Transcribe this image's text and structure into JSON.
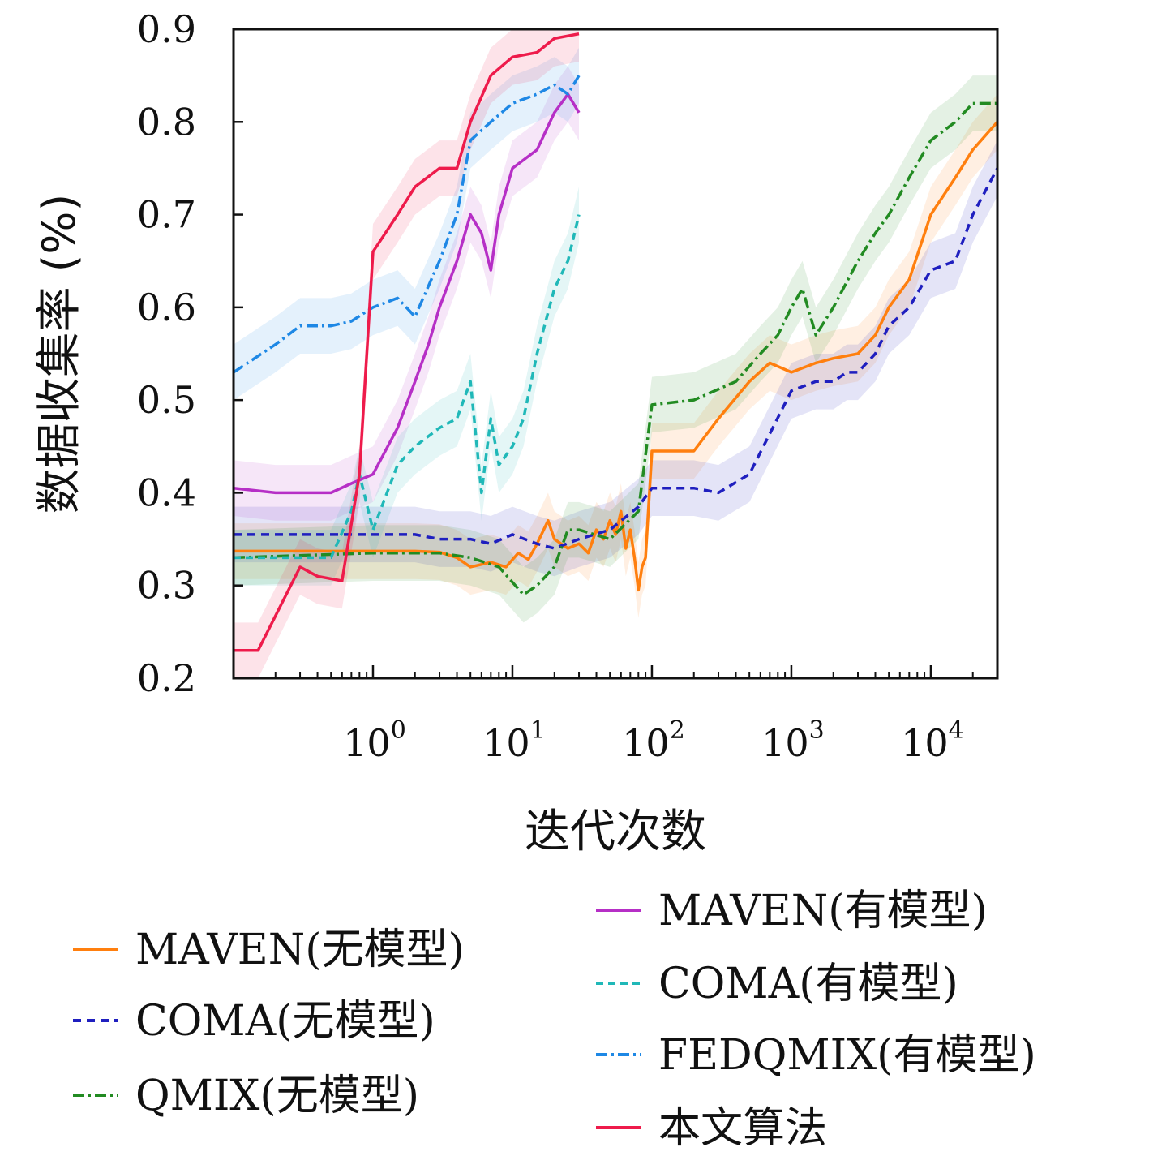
{
  "chart_data": {
    "type": "line",
    "xlabel": "迭代次数",
    "ylabel": "数据收集率 (%)",
    "x_scale": "log",
    "xlim": [
      0.1,
      30000
    ],
    "ylim": [
      0.2,
      0.9
    ],
    "yticks": [
      "0.2",
      "0.3",
      "0.4",
      "0.5",
      "0.6",
      "0.7",
      "0.8",
      "0.9"
    ],
    "xticks": [
      {
        "base": "10",
        "exp": "0",
        "value": 1
      },
      {
        "base": "10",
        "exp": "1",
        "value": 10
      },
      {
        "base": "10",
        "exp": "2",
        "value": 100
      },
      {
        "base": "10",
        "exp": "3",
        "value": 1000
      },
      {
        "base": "10",
        "exp": "4",
        "value": 10000
      }
    ],
    "legend_position": "bottom",
    "series": [
      {
        "name": "MAVEN(无模型)",
        "color": "#ff7f0e",
        "dash": "solid",
        "points": [
          [
            0.1,
            0.337
          ],
          [
            0.5,
            0.337
          ],
          [
            1,
            0.337
          ],
          [
            2,
            0.337
          ],
          [
            3,
            0.336
          ],
          [
            4,
            0.33
          ],
          [
            5,
            0.32
          ],
          [
            7,
            0.325
          ],
          [
            9,
            0.32
          ],
          [
            11,
            0.335
          ],
          [
            13,
            0.328
          ],
          [
            15,
            0.345
          ],
          [
            18,
            0.37
          ],
          [
            20,
            0.35
          ],
          [
            25,
            0.34
          ],
          [
            30,
            0.345
          ],
          [
            35,
            0.335
          ],
          [
            40,
            0.36
          ],
          [
            45,
            0.35
          ],
          [
            50,
            0.37
          ],
          [
            55,
            0.355
          ],
          [
            60,
            0.38
          ],
          [
            65,
            0.34
          ],
          [
            70,
            0.36
          ],
          [
            75,
            0.33
          ],
          [
            80,
            0.295
          ],
          [
            85,
            0.32
          ],
          [
            90,
            0.33
          ],
          [
            100,
            0.445
          ],
          [
            200,
            0.445
          ],
          [
            300,
            0.48
          ],
          [
            500,
            0.52
          ],
          [
            700,
            0.54
          ],
          [
            1000,
            0.53
          ],
          [
            1500,
            0.54
          ],
          [
            2000,
            0.545
          ],
          [
            3000,
            0.55
          ],
          [
            4000,
            0.57
          ],
          [
            5000,
            0.6
          ],
          [
            7000,
            0.63
          ],
          [
            10000,
            0.7
          ],
          [
            15000,
            0.74
          ],
          [
            20000,
            0.77
          ],
          [
            30000,
            0.8
          ]
        ]
      },
      {
        "name": "COMA(无模型)",
        "color": "#1f1fbf",
        "dash": "10,7",
        "points": [
          [
            0.1,
            0.355
          ],
          [
            1,
            0.355
          ],
          [
            2,
            0.355
          ],
          [
            3,
            0.35
          ],
          [
            5,
            0.35
          ],
          [
            7,
            0.345
          ],
          [
            10,
            0.355
          ],
          [
            15,
            0.345
          ],
          [
            20,
            0.34
          ],
          [
            30,
            0.35
          ],
          [
            50,
            0.36
          ],
          [
            80,
            0.385
          ],
          [
            100,
            0.405
          ],
          [
            200,
            0.405
          ],
          [
            300,
            0.4
          ],
          [
            500,
            0.42
          ],
          [
            1000,
            0.51
          ],
          [
            1500,
            0.52
          ],
          [
            2000,
            0.52
          ],
          [
            2500,
            0.53
          ],
          [
            3000,
            0.53
          ],
          [
            4000,
            0.55
          ],
          [
            5000,
            0.58
          ],
          [
            7000,
            0.6
          ],
          [
            10000,
            0.64
          ],
          [
            15000,
            0.65
          ],
          [
            20000,
            0.7
          ],
          [
            30000,
            0.75
          ]
        ]
      },
      {
        "name": "QMIX(无模型)",
        "color": "#228b22",
        "dash": "14,5,3,5",
        "points": [
          [
            0.1,
            0.33
          ],
          [
            1,
            0.335
          ],
          [
            3,
            0.335
          ],
          [
            5,
            0.33
          ],
          [
            8,
            0.32
          ],
          [
            12,
            0.29
          ],
          [
            15,
            0.3
          ],
          [
            20,
            0.32
          ],
          [
            25,
            0.36
          ],
          [
            30,
            0.36
          ],
          [
            50,
            0.35
          ],
          [
            80,
            0.38
          ],
          [
            100,
            0.495
          ],
          [
            200,
            0.5
          ],
          [
            400,
            0.52
          ],
          [
            600,
            0.55
          ],
          [
            800,
            0.57
          ],
          [
            1000,
            0.6
          ],
          [
            1200,
            0.62
          ],
          [
            1500,
            0.57
          ],
          [
            2000,
            0.6
          ],
          [
            3000,
            0.65
          ],
          [
            4000,
            0.68
          ],
          [
            5000,
            0.7
          ],
          [
            7000,
            0.74
          ],
          [
            10000,
            0.78
          ],
          [
            15000,
            0.8
          ],
          [
            20000,
            0.82
          ],
          [
            30000,
            0.82
          ]
        ]
      },
      {
        "name": "MAVEN(有模型)",
        "color": "#b62fc6",
        "dash": "solid",
        "points": [
          [
            0.1,
            0.405
          ],
          [
            0.2,
            0.4
          ],
          [
            0.3,
            0.4
          ],
          [
            0.5,
            0.4
          ],
          [
            0.7,
            0.41
          ],
          [
            1,
            0.42
          ],
          [
            1.5,
            0.47
          ],
          [
            2,
            0.52
          ],
          [
            2.5,
            0.56
          ],
          [
            3,
            0.6
          ],
          [
            4,
            0.65
          ],
          [
            5,
            0.7
          ],
          [
            6,
            0.68
          ],
          [
            7,
            0.64
          ],
          [
            8,
            0.7
          ],
          [
            10,
            0.75
          ],
          [
            15,
            0.77
          ],
          [
            20,
            0.81
          ],
          [
            25,
            0.83
          ],
          [
            30,
            0.81
          ]
        ]
      },
      {
        "name": "COMA(有模型)",
        "color": "#20b8b8",
        "dash": "9,6",
        "points": [
          [
            0.1,
            0.33
          ],
          [
            0.5,
            0.33
          ],
          [
            0.7,
            0.38
          ],
          [
            0.8,
            0.42
          ],
          [
            1,
            0.36
          ],
          [
            1.5,
            0.43
          ],
          [
            2,
            0.45
          ],
          [
            3,
            0.47
          ],
          [
            4,
            0.48
          ],
          [
            5,
            0.52
          ],
          [
            6,
            0.4
          ],
          [
            7,
            0.48
          ],
          [
            8,
            0.43
          ],
          [
            10,
            0.45
          ],
          [
            12,
            0.48
          ],
          [
            15,
            0.55
          ],
          [
            20,
            0.62
          ],
          [
            25,
            0.65
          ],
          [
            30,
            0.7
          ]
        ]
      },
      {
        "name": "FEDQMIX(有模型)",
        "color": "#1e88e5",
        "dash": "14,5,3,5",
        "points": [
          [
            0.1,
            0.53
          ],
          [
            0.2,
            0.56
          ],
          [
            0.3,
            0.58
          ],
          [
            0.5,
            0.58
          ],
          [
            0.7,
            0.585
          ],
          [
            1,
            0.6
          ],
          [
            1.5,
            0.61
          ],
          [
            2,
            0.59
          ],
          [
            3,
            0.65
          ],
          [
            4,
            0.7
          ],
          [
            5,
            0.78
          ],
          [
            7,
            0.8
          ],
          [
            10,
            0.82
          ],
          [
            15,
            0.83
          ],
          [
            20,
            0.84
          ],
          [
            25,
            0.83
          ],
          [
            30,
            0.85
          ]
        ]
      },
      {
        "name": "本文算法",
        "color": "#ee1b4b",
        "dash": "solid",
        "points": [
          [
            0.1,
            0.23
          ],
          [
            0.15,
            0.23
          ],
          [
            0.3,
            0.32
          ],
          [
            0.4,
            0.31
          ],
          [
            0.6,
            0.305
          ],
          [
            0.8,
            0.42
          ],
          [
            1,
            0.66
          ],
          [
            1.5,
            0.7
          ],
          [
            2,
            0.73
          ],
          [
            3,
            0.75
          ],
          [
            4,
            0.75
          ],
          [
            5,
            0.8
          ],
          [
            7,
            0.85
          ],
          [
            10,
            0.87
          ],
          [
            15,
            0.875
          ],
          [
            20,
            0.89
          ],
          [
            30,
            0.895
          ]
        ]
      }
    ]
  }
}
